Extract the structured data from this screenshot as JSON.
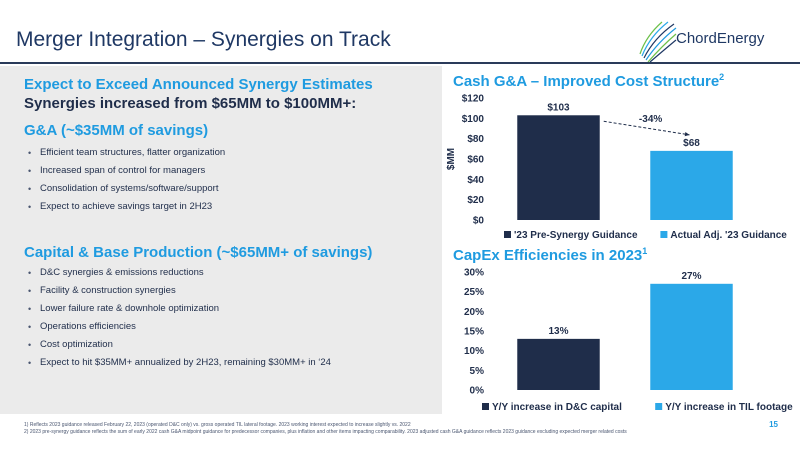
{
  "header": {
    "title": "Merger Integration – Synergies on Track",
    "logo_text": "ChordEnergy"
  },
  "left": {
    "expect_heading": "Expect to Exceed Announced Synergy Estimates",
    "increase_heading": "Synergies increased from $65MM to $100MM+:",
    "ga": {
      "heading": "G&A (~$35MM of savings)",
      "bullets": [
        "Efficient team structures, flatter organization",
        "Increased span of control for managers",
        "Consolidation of systems/software/support",
        "Expect to achieve savings target in 2H23"
      ]
    },
    "capital": {
      "heading": "Capital & Base Production (~$65MM+ of savings)",
      "bullets": [
        "D&C synergies & emissions reductions",
        "Facility & construction synergies",
        "Lower failure rate & downhole optimization",
        "Operations efficiencies",
        "Cost optimization",
        "Expect to hit $35MM+ annualized by 2H23, remaining $30MM+ in ‘24"
      ]
    }
  },
  "charts": {
    "cash_title": "Cash G&A – Improved Cost Structure",
    "cash_sup": "2",
    "capex_title": "CapEx Efficiencies in 2023",
    "capex_sup": "1"
  },
  "chart_data": [
    {
      "type": "bar",
      "title": "Cash G&A – Improved Cost Structure",
      "ylabel": "$MM",
      "ylim": [
        0,
        120
      ],
      "yticks": [
        0,
        20,
        40,
        60,
        80,
        100,
        120
      ],
      "ytick_labels": [
        "$0",
        "$20",
        "$40",
        "$60",
        "$80",
        "$100",
        "$120"
      ],
      "categories": [
        "'23 Pre-Synergy Guidance",
        "Actual Adj. '23 Guidance"
      ],
      "values": [
        103,
        68
      ],
      "value_labels": [
        "$103",
        "$68"
      ],
      "colors": [
        "#1f2d4a",
        "#2ba8e8"
      ],
      "annotation": "-34%",
      "legend": "bottom"
    },
    {
      "type": "bar",
      "title": "CapEx Efficiencies in 2023",
      "ylim": [
        0,
        30
      ],
      "yticks": [
        0,
        5,
        10,
        15,
        20,
        25,
        30
      ],
      "ytick_labels": [
        "0%",
        "5%",
        "10%",
        "15%",
        "20%",
        "25%",
        "30%"
      ],
      "categories": [
        "Y/Y increase in D&C capital",
        "Y/Y increase in TIL footage"
      ],
      "values": [
        13,
        27
      ],
      "value_labels": [
        "13%",
        "27%"
      ],
      "colors": [
        "#1f2d4a",
        "#2ba8e8"
      ],
      "legend": "bottom"
    }
  ],
  "footer": {
    "footnote1": "1)   Reflects 2023 guidance released February 22, 2023 (operated D&C only) vs. gross operated TIL lateral footage. 2023 working interest expected to increase slightly vs. 2022",
    "footnote2": "2)   2023 pre-synergy guidance reflects the sum of early 2022 cash G&A midpoint guidance for predecessor companies, plus inflation and other items impacting comparability. 2023 adjusted cash G&A guidance reflects 2023 guidance excluding expected merger related costs",
    "page_number": "15"
  }
}
